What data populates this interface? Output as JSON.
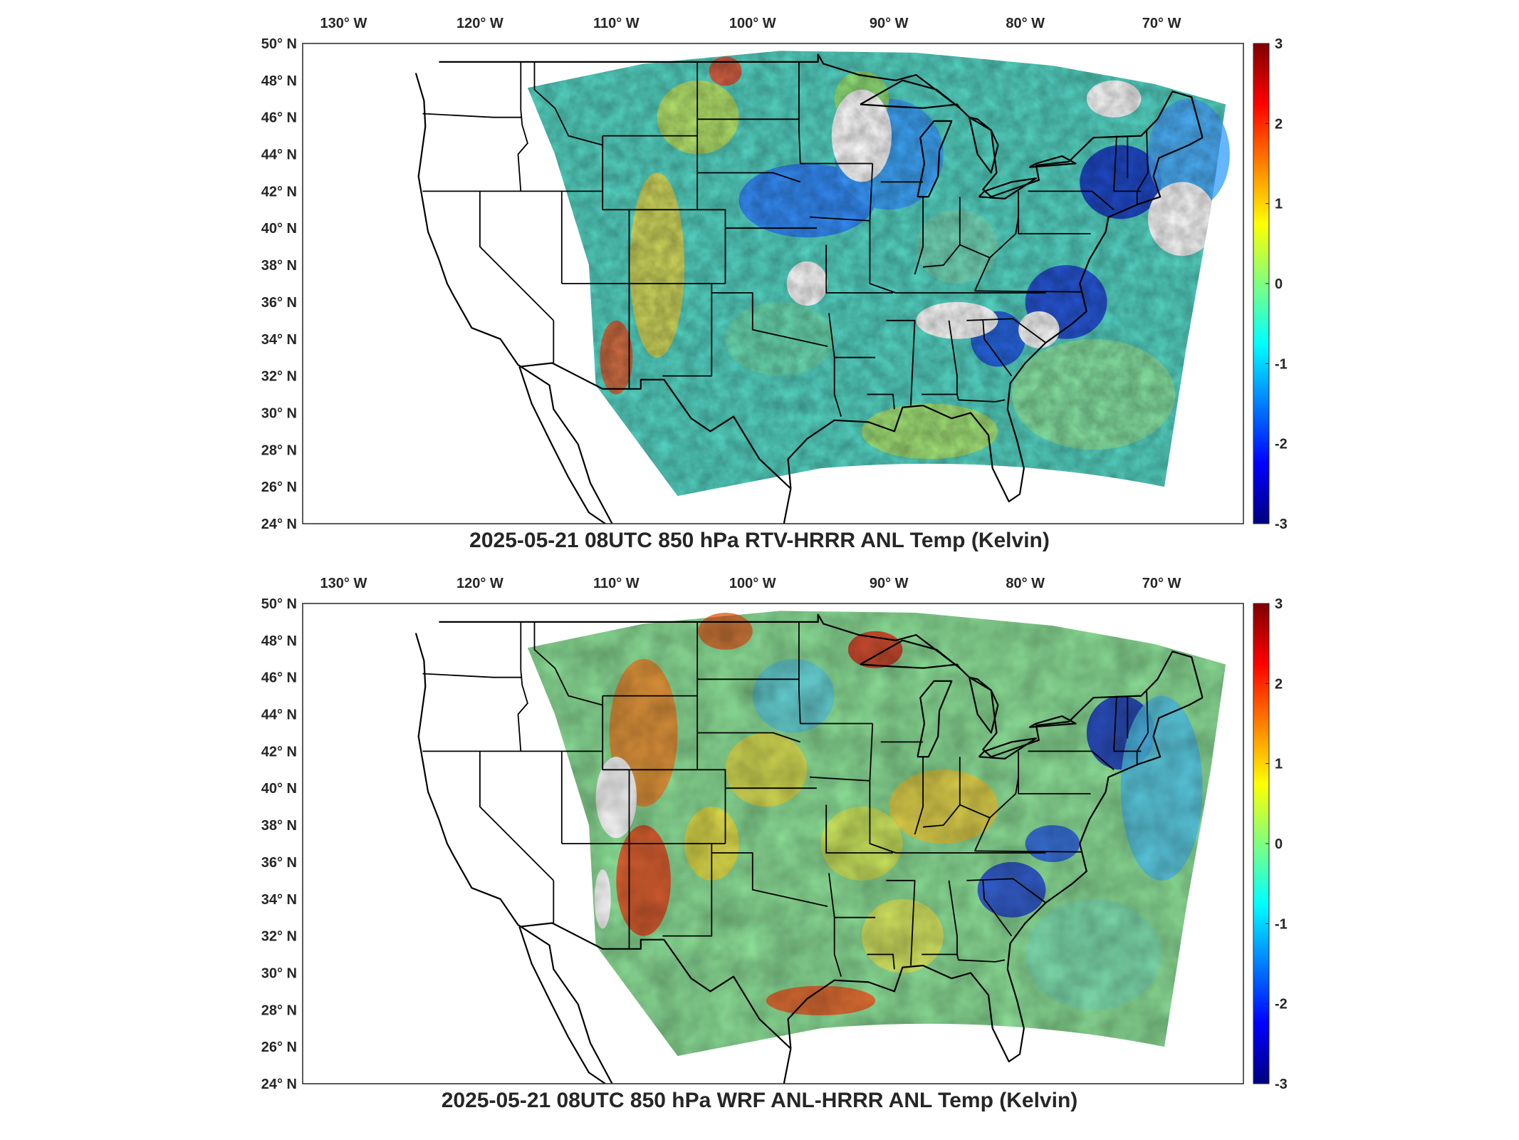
{
  "figure": {
    "panels": [
      {
        "id": "rtv",
        "title": "2025-05-21 08UTC 850 hPa RTV-HRRR ANL Temp (Kelvin)",
        "lon_ticks": [
          "130° W",
          "120° W",
          "110° W",
          "100° W",
          "90° W",
          "80° W",
          "70° W"
        ],
        "lat_ticks": [
          "50° N",
          "48° N",
          "46° N",
          "44° N",
          "42° N",
          "40° N",
          "38° N",
          "36° N",
          "34° N",
          "32° N",
          "30° N",
          "28° N",
          "26° N",
          "24° N"
        ],
        "colorbar_ticks": [
          "3",
          "2",
          "1",
          "0",
          "-1",
          "-2",
          "-3"
        ]
      },
      {
        "id": "wrf",
        "title": "2025-05-21 08UTC 850 hPa WRF ANL-HRRR ANL Temp (Kelvin)",
        "lon_ticks": [
          "130° W",
          "120° W",
          "110° W",
          "100° W",
          "90° W",
          "80° W",
          "70° W"
        ],
        "lat_ticks": [
          "50° N",
          "48° N",
          "46° N",
          "44° N",
          "42° N",
          "40° N",
          "38° N",
          "36° N",
          "34° N",
          "32° N",
          "30° N",
          "28° N",
          "26° N",
          "24° N"
        ],
        "colorbar_ticks": [
          "3",
          "2",
          "1",
          "0",
          "-1",
          "-2",
          "-3"
        ]
      }
    ],
    "colormap": [
      "#00007f",
      "#0000ff",
      "#007fff",
      "#00ffff",
      "#7fff7f",
      "#ffff00",
      "#ff7f00",
      "#ff0000",
      "#7f0000"
    ],
    "colorbar_range": [
      -3,
      3
    ]
  }
}
